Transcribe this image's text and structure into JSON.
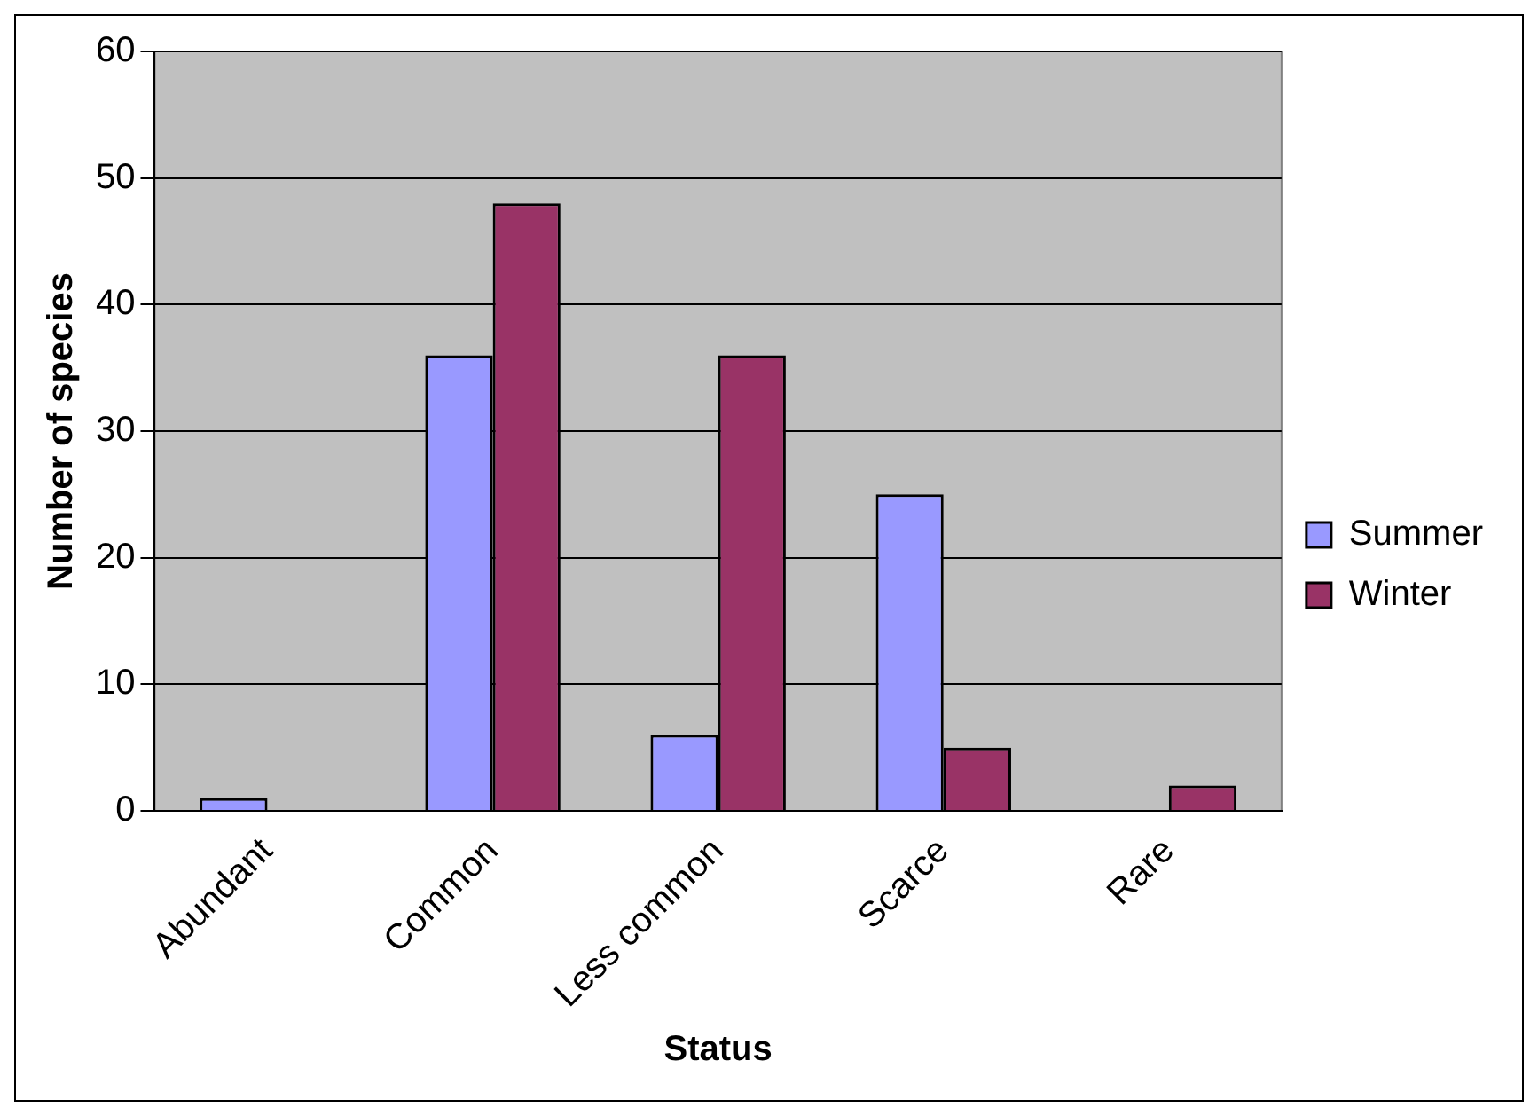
{
  "chart_data": {
    "type": "bar",
    "xlabel": "Status",
    "ylabel": "Number of species",
    "categories": [
      "Abundant",
      "Common",
      "Less common",
      "Scarce",
      "Rare"
    ],
    "series": [
      {
        "name": "Summer",
        "color": "#9999ff",
        "values": [
          1,
          36,
          6,
          25,
          0
        ]
      },
      {
        "name": "Winter",
        "color": "#993366",
        "values": [
          0,
          48,
          36,
          5,
          2
        ]
      }
    ],
    "ylim": [
      0,
      60
    ],
    "yticks": [
      0,
      10,
      20,
      30,
      40,
      50,
      60
    ],
    "grid": "y",
    "legend": "right"
  }
}
